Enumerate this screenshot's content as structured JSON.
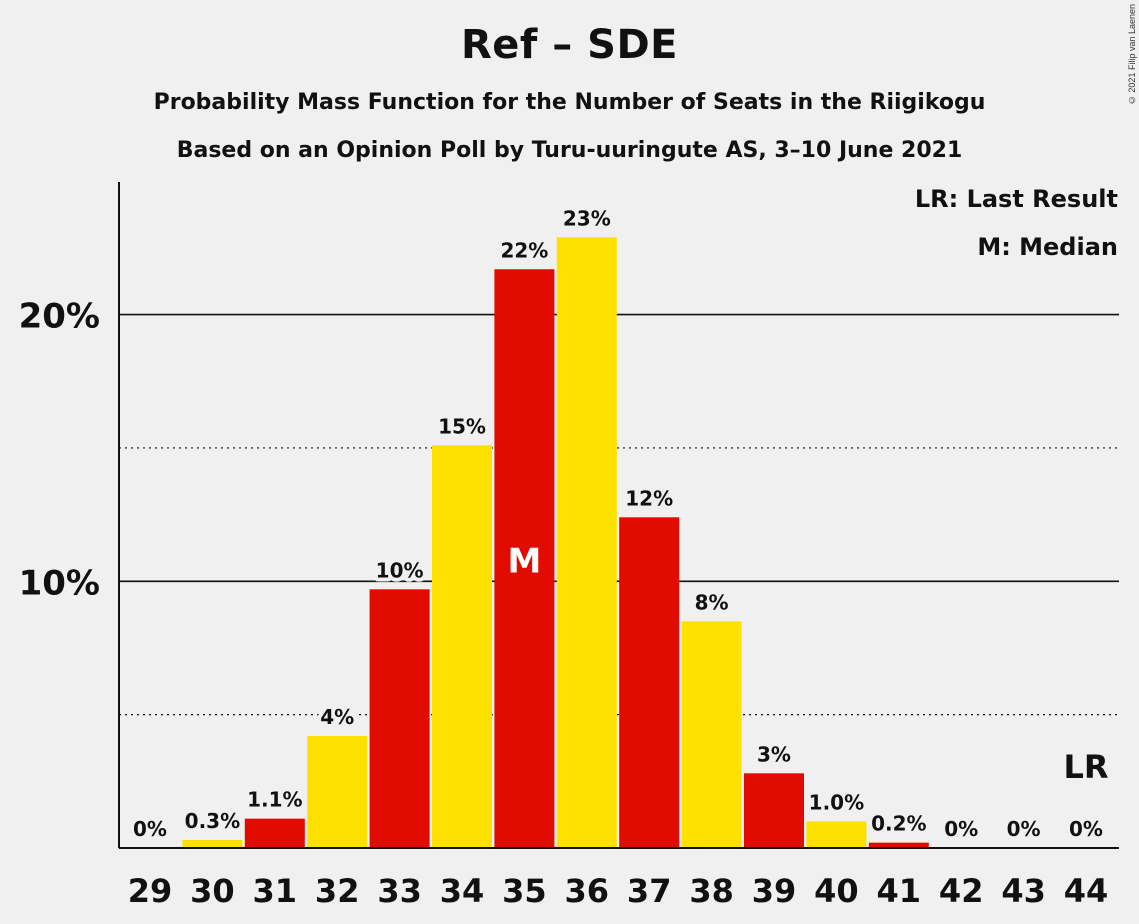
{
  "header": {
    "title": "Ref – SDE",
    "subtitle_1": "Probability Mass Function for the Number of Seats in the Riigikogu",
    "subtitle_2": "Based on an Opinion Poll by Turu-uuringute AS, 3–10 June 2021",
    "copyright": "© 2021 Filip van Laenen"
  },
  "legend": {
    "last_result": "LR: Last Result",
    "median": "M: Median"
  },
  "colors": {
    "red": "#e10b00",
    "yellow": "#ffe100",
    "background": "#f0f0f0",
    "axis": "#111111"
  },
  "chart_data": {
    "type": "bar",
    "categories": [
      "29",
      "30",
      "31",
      "32",
      "33",
      "34",
      "35",
      "36",
      "37",
      "38",
      "39",
      "40",
      "41",
      "42",
      "43",
      "44"
    ],
    "values": [
      0,
      0.3,
      1.1,
      4.2,
      9.7,
      15.1,
      21.7,
      22.9,
      12.4,
      8.5,
      2.8,
      1.0,
      0.2,
      0,
      0,
      0
    ],
    "data_labels": [
      "0%",
      "0.3%",
      "1.1%",
      "4%",
      "10%",
      "15%",
      "22%",
      "23%",
      "12%",
      "8%",
      "3%",
      "1.0%",
      "0.2%",
      "0%",
      "0%",
      "0%"
    ],
    "bar_colors": [
      "red",
      "yellow",
      "red",
      "yellow",
      "red",
      "yellow",
      "red",
      "yellow",
      "red",
      "yellow",
      "red",
      "yellow",
      "red",
      "yellow",
      "red",
      "yellow"
    ],
    "y_ticks": [
      {
        "value": 10,
        "label": "10%"
      },
      {
        "value": 20,
        "label": "20%"
      }
    ],
    "y_minor_gridlines": [
      5,
      15
    ],
    "ylim": [
      0,
      25
    ],
    "median_category": "35",
    "median_marker": "M",
    "last_result_category": "44",
    "last_result_marker": "LR",
    "title": "Ref – SDE",
    "xlabel": "",
    "ylabel": ""
  }
}
